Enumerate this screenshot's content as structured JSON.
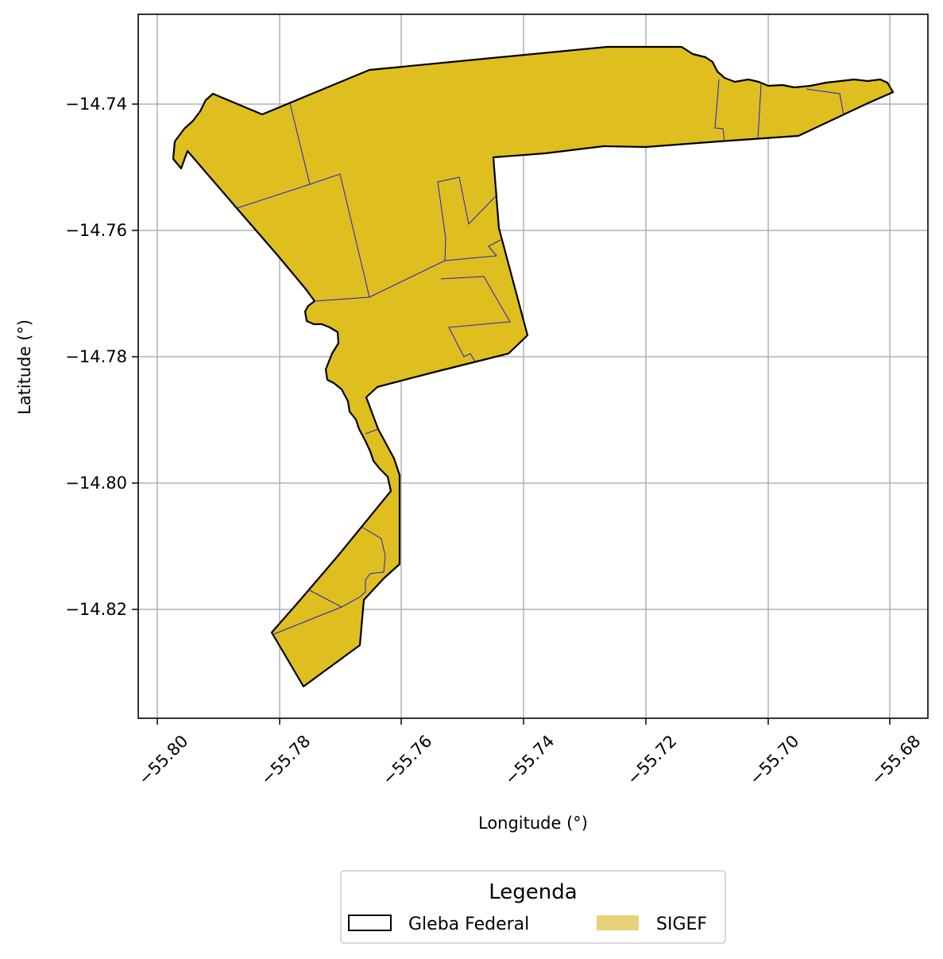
{
  "map": {
    "xlabel": "Longitude (°)",
    "ylabel": "Latitude (°)",
    "x_ticks": [
      "−55.80",
      "−55.78",
      "−55.76",
      "−55.74",
      "−55.72",
      "−55.70",
      "−55.68"
    ],
    "y_ticks": [
      "−14.74",
      "−14.76",
      "−14.78",
      "−14.80",
      "−14.82"
    ],
    "x_range": [
      -55.8033,
      -55.6737
    ],
    "y_range": [
      -14.8368,
      -14.7261
    ],
    "grid": true,
    "colors": {
      "sigef_fill": "#dfbe20",
      "gleba_edge": "#000000",
      "parcel_lines": "#2020d0",
      "grid": "#b0b0b0"
    }
  },
  "legend": {
    "title": "Legenda",
    "placement": "bottom-center",
    "items": [
      {
        "label": "Gleba Federal",
        "style": "outline"
      },
      {
        "label": "SIGEF",
        "style": "fill",
        "color": "#e6d27a"
      }
    ]
  }
}
